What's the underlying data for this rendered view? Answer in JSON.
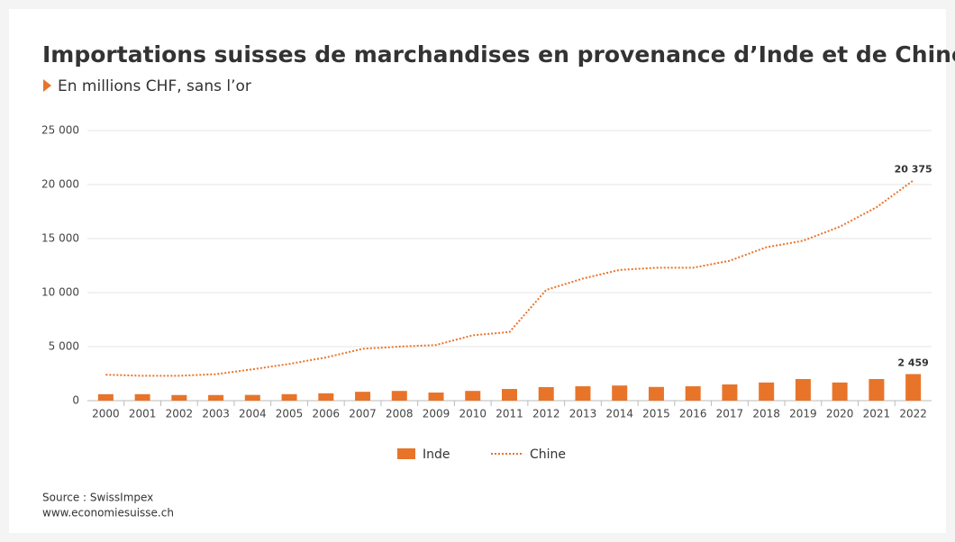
{
  "chart_data": {
    "type": "bar_line",
    "title": "Importations suisses de marchandises en provenance d’Inde et de Chine",
    "subtitle": "En millions CHF, sans l’or",
    "categories": [
      "2000",
      "2001",
      "2002",
      "2003",
      "2004",
      "2005",
      "2006",
      "2007",
      "2008",
      "2009",
      "2010",
      "2011",
      "2012",
      "2013",
      "2014",
      "2015",
      "2016",
      "2017",
      "2018",
      "2019",
      "2020",
      "2021",
      "2022"
    ],
    "series": [
      {
        "name": "Inde",
        "type": "bar",
        "color": "#e8742a",
        "values": [
          600,
          600,
          520,
          520,
          530,
          600,
          680,
          820,
          900,
          750,
          900,
          1080,
          1250,
          1330,
          1400,
          1270,
          1330,
          1500,
          1680,
          2000,
          1680,
          2000,
          2459
        ],
        "value_labels": [
          null,
          null,
          null,
          null,
          null,
          null,
          null,
          null,
          null,
          null,
          null,
          null,
          null,
          null,
          null,
          null,
          null,
          null,
          null,
          null,
          null,
          null,
          "2 459"
        ]
      },
      {
        "name": "Chine",
        "type": "line",
        "dashed": true,
        "color": "#e8742a",
        "values": [
          2400,
          2300,
          2300,
          2450,
          2900,
          3400,
          4000,
          4800,
          5000,
          5150,
          6050,
          6350,
          10250,
          11300,
          12100,
          12300,
          12300,
          12950,
          14200,
          14800,
          16100,
          17900,
          20375
        ],
        "value_labels": [
          null,
          null,
          null,
          null,
          null,
          null,
          null,
          null,
          null,
          null,
          null,
          null,
          null,
          null,
          null,
          null,
          null,
          null,
          null,
          null,
          null,
          null,
          "20 375"
        ]
      }
    ],
    "ylim": [
      0,
      25000
    ],
    "yticks": [
      0,
      {
        "value": 5000,
        "label": "5 000"
      },
      {
        "value": 10000,
        "label": "10 000"
      },
      {
        "value": 15000,
        "label": "15 000"
      },
      {
        "value": 20000,
        "label": "20 000"
      },
      {
        "value": 25000,
        "label": "25 000"
      }
    ],
    "grid": true,
    "legend": "bottom",
    "source": "Source : SwissImpex",
    "url": "www.economiesuisse.ch"
  }
}
